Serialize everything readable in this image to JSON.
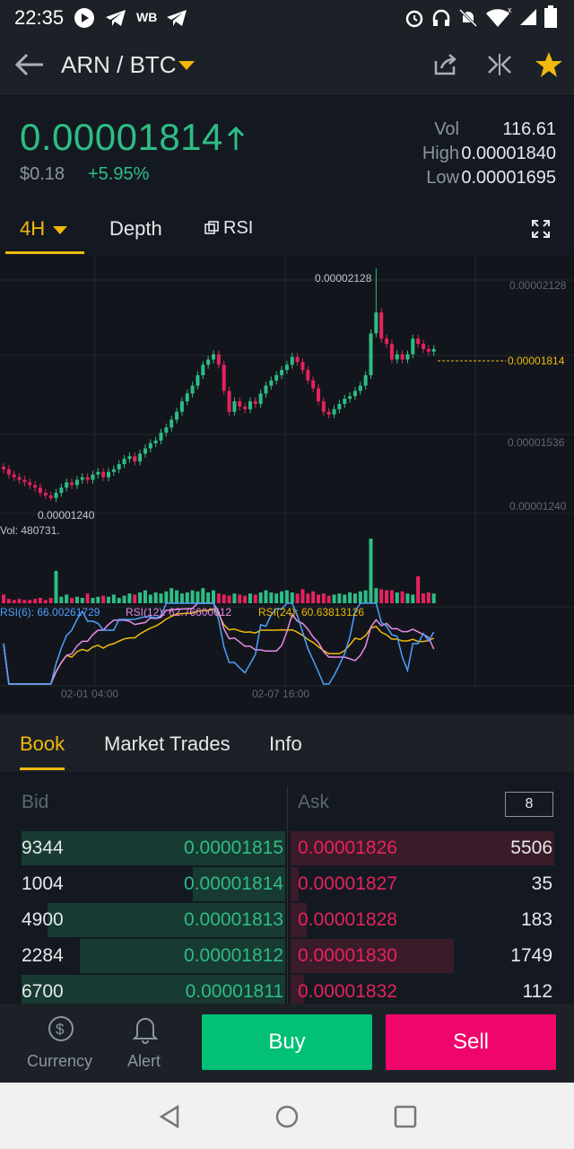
{
  "status_bar": {
    "time": "22:35",
    "wb_label": "WB"
  },
  "nav": {
    "pair": "ARN / BTC"
  },
  "ticker": {
    "price": "0.00001814",
    "usd": "$0.18",
    "change": "+5.95%",
    "vol_label": "Vol",
    "vol": "116.61",
    "high_label": "High",
    "high": "0.00001840",
    "low_label": "Low",
    "low": "0.00001695"
  },
  "chart_tabs": {
    "interval": "4H",
    "depth": "Depth",
    "rsi": "RSI"
  },
  "chart_data": {
    "type": "candlestick",
    "price_max_label": "0.00002128",
    "price_min_label": "0.00001240",
    "current_label": "0.00001814",
    "axis_labels": [
      "0.00002128",
      "0.00001814",
      "0.00001536",
      "0.00001240"
    ],
    "ylim": [
      1.15e-05,
      2.18e-05
    ],
    "vol_label": "Vol: 480731.",
    "rsi6_label": "RSI(6): 66.00261729",
    "rsi12_label": "RSI(12): 62.76600612",
    "rsi24_label": "RSI(24): 60.63813126",
    "x_labels": [
      "02-01 04:00",
      "02-07 16:00"
    ],
    "colors": {
      "up": "#2ebd85",
      "down": "#e6225e",
      "rsi6": "#4da0ff",
      "rsi12": "#e88ce8",
      "rsi24": "#f0b90b"
    },
    "closes": [
      1.36,
      1.34,
      1.33,
      1.32,
      1.31,
      1.3,
      1.29,
      1.27,
      1.26,
      1.25,
      1.27,
      1.29,
      1.31,
      1.3,
      1.32,
      1.33,
      1.32,
      1.34,
      1.35,
      1.33,
      1.35,
      1.36,
      1.38,
      1.4,
      1.41,
      1.39,
      1.42,
      1.44,
      1.46,
      1.47,
      1.5,
      1.52,
      1.55,
      1.58,
      1.62,
      1.65,
      1.68,
      1.72,
      1.76,
      1.78,
      1.8,
      1.76,
      1.66,
      1.58,
      1.62,
      1.6,
      1.59,
      1.62,
      1.61,
      1.65,
      1.68,
      1.7,
      1.72,
      1.74,
      1.76,
      1.79,
      1.77,
      1.74,
      1.7,
      1.67,
      1.62,
      1.58,
      1.57,
      1.59,
      1.61,
      1.63,
      1.64,
      1.66,
      1.68,
      1.72,
      1.88,
      1.96,
      1.86,
      1.84,
      1.78,
      1.8,
      1.78,
      1.8,
      1.86,
      1.84,
      1.82,
      1.81,
      1.82
    ],
    "volumes": [
      8,
      4,
      3,
      4,
      3,
      3,
      4,
      5,
      3,
      5,
      30,
      6,
      8,
      5,
      6,
      5,
      9,
      5,
      6,
      7,
      6,
      8,
      5,
      7,
      9,
      8,
      10,
      12,
      8,
      10,
      9,
      11,
      14,
      12,
      9,
      10,
      12,
      11,
      14,
      10,
      12,
      9,
      8,
      7,
      9,
      8,
      7,
      9,
      8,
      10,
      12,
      10,
      9,
      11,
      12,
      10,
      9,
      13,
      9,
      11,
      8,
      9,
      7,
      8,
      9,
      8,
      10,
      9,
      11,
      12,
      60,
      14,
      13,
      12,
      12,
      10,
      11,
      9,
      8,
      25,
      9,
      10,
      9
    ]
  },
  "book_tabs": {
    "book": "Book",
    "trades": "Market Trades",
    "info": "Info"
  },
  "book": {
    "bid_label": "Bid",
    "ask_label": "Ask",
    "depth": "8",
    "rows": [
      {
        "bid_qty": "9344",
        "bid_px": "0.00001815",
        "ask_px": "0.00001826",
        "ask_qty": "5506",
        "bid_fill": 1.0,
        "ask_fill": 1.0
      },
      {
        "bid_qty": "1004",
        "bid_px": "0.00001814",
        "ask_px": "0.00001827",
        "ask_qty": "35",
        "bid_fill": 0.35,
        "ask_fill": 0.03
      },
      {
        "bid_qty": "4900",
        "bid_px": "0.00001813",
        "ask_px": "0.00001828",
        "ask_qty": "183",
        "bid_fill": 0.9,
        "ask_fill": 0.06
      },
      {
        "bid_qty": "2284",
        "bid_px": "0.00001812",
        "ask_px": "0.00001830",
        "ask_qty": "1749",
        "bid_fill": 0.78,
        "ask_fill": 0.62
      },
      {
        "bid_qty": "6700",
        "bid_px": "0.00001811",
        "ask_px": "0.00001832",
        "ask_qty": "112",
        "bid_fill": 1.0,
        "ask_fill": 0.05
      }
    ]
  },
  "bottom": {
    "currency": "Currency",
    "alert": "Alert",
    "buy": "Buy",
    "sell": "Sell"
  }
}
